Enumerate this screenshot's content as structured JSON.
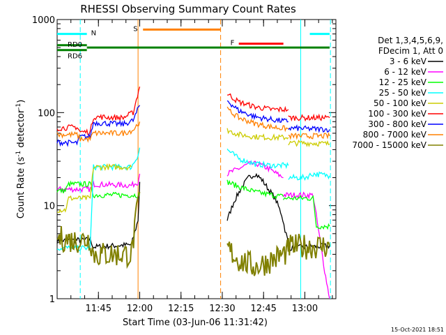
{
  "chart_data": {
    "type": "line",
    "title": "RHESSI Observing Summary Count Rates",
    "xlabel": "Start Time (03-Jun-06 11:31:42)",
    "ylabel": "Count Rate (s",
    "ylabel_sup": "-1",
    "ylabel_end": " detector",
    "ylabel_close": ")",
    "timestamp": "15-Oct-2021 18:51",
    "y_scale": "log",
    "ylim": [
      1,
      1000
    ],
    "xlim_minutes": [
      11.5,
      13.188
    ],
    "y_ticks": [
      {
        "value": 1,
        "label": "1"
      },
      {
        "value": 10,
        "label": "10"
      },
      {
        "value": 100,
        "label": "100"
      },
      {
        "value": 1000,
        "label": "1000"
      }
    ],
    "x_ticks": [
      {
        "value": 11.75,
        "label": "11:45"
      },
      {
        "value": 12.0,
        "label": "12:00"
      },
      {
        "value": 12.25,
        "label": "12:15"
      },
      {
        "value": 12.5,
        "label": "12:30"
      },
      {
        "value": 12.75,
        "label": "12:45"
      },
      {
        "value": 13.0,
        "label": "13:00"
      }
    ],
    "legend_header": [
      "Det 1,3,4,5,6,9,",
      "FDecim 1, Att 0"
    ],
    "series": [
      {
        "name": "3 - 6 keV",
        "color": "#000000",
        "segments": [
          [
            [
              11.5,
              4.2
            ],
            [
              11.7,
              4.3
            ],
            [
              11.72,
              3.6
            ],
            [
              11.95,
              3.8
            ],
            [
              11.99,
              7
            ],
            [
              12.0,
              18
            ]
          ],
          [
            [
              12.53,
              7
            ],
            [
              12.57,
              11
            ],
            [
              12.62,
              16
            ],
            [
              12.66,
              20
            ],
            [
              12.7,
              22
            ],
            [
              12.74,
              19
            ],
            [
              12.78,
              15
            ],
            [
              12.82,
              12
            ],
            [
              12.86,
              8
            ],
            [
              12.88,
              5.5
            ],
            [
              12.9,
              4
            ]
          ],
          [
            [
              12.9,
              3.5
            ],
            [
              13.15,
              3.7
            ]
          ]
        ]
      },
      {
        "name": "6 - 12 keV",
        "color": "#ff00ff",
        "segments": [
          [
            [
              11.5,
              15
            ],
            [
              11.7,
              15
            ],
            [
              11.72,
              17
            ],
            [
              11.95,
              16.5
            ],
            [
              11.99,
              18
            ],
            [
              12.0,
              22
            ]
          ],
          [
            [
              12.53,
              22
            ],
            [
              12.6,
              25
            ],
            [
              12.66,
              28
            ],
            [
              12.72,
              28
            ],
            [
              12.78,
              25
            ],
            [
              12.83,
              22
            ],
            [
              12.87,
              20
            ]
          ],
          [
            [
              12.87,
              13
            ],
            [
              13.05,
              13
            ],
            [
              13.12,
              2
            ],
            [
              13.15,
              1
            ]
          ]
        ]
      },
      {
        "name": "12 - 25 keV",
        "color": "#00ff00",
        "segments": [
          [
            [
              11.5,
              14.5
            ],
            [
              11.55,
              14.5
            ],
            [
              11.57,
              17
            ],
            [
              11.7,
              17
            ],
            [
              11.72,
              13
            ],
            [
              11.95,
              13
            ],
            [
              12.0,
              13
            ]
          ],
          [
            [
              12.53,
              18
            ],
            [
              12.6,
              16
            ],
            [
              12.7,
              14
            ],
            [
              12.8,
              13
            ],
            [
              12.87,
              12.5
            ]
          ],
          [
            [
              12.87,
              12
            ],
            [
              13.05,
              12
            ],
            [
              13.07,
              6
            ],
            [
              13.15,
              6
            ]
          ]
        ]
      },
      {
        "name": "25 - 50 keV",
        "color": "#00ffff",
        "segments": [
          [
            [
              11.5,
              3.5
            ],
            [
              11.7,
              3.5
            ],
            [
              11.72,
              26
            ],
            [
              11.95,
              26
            ],
            [
              11.99,
              35
            ],
            [
              12.0,
              42
            ]
          ],
          [
            [
              12.53,
              40
            ],
            [
              12.6,
              32
            ],
            [
              12.7,
              28
            ],
            [
              12.8,
              27
            ],
            [
              12.9,
              27
            ]
          ],
          [
            [
              12.9,
              20
            ],
            [
              13.0,
              20
            ],
            [
              13.05,
              22
            ],
            [
              13.15,
              21
            ]
          ]
        ]
      },
      {
        "name": "50 - 100 keV",
        "color": "#cccc00",
        "segments": [
          [
            [
              11.5,
              9
            ],
            [
              11.55,
              9
            ],
            [
              11.57,
              12
            ],
            [
              11.7,
              12
            ],
            [
              11.72,
              26
            ],
            [
              11.95,
              26
            ]
          ],
          [
            [
              12.53,
              65
            ],
            [
              12.6,
              58
            ],
            [
              12.7,
              55
            ],
            [
              12.8,
              54
            ],
            [
              12.9,
              54
            ]
          ],
          [
            [
              12.9,
              47
            ],
            [
              13.05,
              47
            ],
            [
              13.15,
              46
            ]
          ]
        ]
      },
      {
        "name": "100 - 300 keV",
        "color": "#ff0000",
        "segments": [
          [
            [
              11.5,
              68
            ],
            [
              11.62,
              70
            ],
            [
              11.64,
              62
            ],
            [
              11.7,
              62
            ],
            [
              11.72,
              90
            ],
            [
              11.9,
              88
            ],
            [
              11.96,
              100
            ],
            [
              12.0,
              190
            ]
          ],
          [
            [
              12.53,
              160
            ],
            [
              12.6,
              130
            ],
            [
              12.7,
              115
            ],
            [
              12.8,
              108
            ],
            [
              12.9,
              108
            ]
          ],
          [
            [
              12.9,
              88
            ],
            [
              13.15,
              88
            ]
          ]
        ]
      },
      {
        "name": "300 - 800 keV",
        "color": "#0000ff",
        "segments": [
          [
            [
              11.5,
              48
            ],
            [
              11.62,
              47
            ],
            [
              11.64,
              55
            ],
            [
              11.7,
              55
            ],
            [
              11.72,
              78
            ],
            [
              11.9,
              75
            ],
            [
              11.96,
              82
            ],
            [
              12.0,
              120
            ]
          ],
          [
            [
              12.53,
              135
            ],
            [
              12.6,
              105
            ],
            [
              12.7,
              90
            ],
            [
              12.8,
              84
            ],
            [
              12.9,
              80
            ]
          ],
          [
            [
              12.9,
              68
            ],
            [
              13.15,
              66
            ]
          ]
        ]
      },
      {
        "name": "800 - 7000 keV",
        "color": "#ff8000",
        "segments": [
          [
            [
              11.5,
              58
            ],
            [
              11.62,
              58
            ],
            [
              11.64,
              52
            ],
            [
              11.7,
              52
            ],
            [
              11.72,
              60
            ],
            [
              11.9,
              60
            ],
            [
              11.96,
              65
            ],
            [
              12.0,
              80
            ]
          ],
          [
            [
              12.53,
              108
            ],
            [
              12.6,
              88
            ],
            [
              12.7,
              76
            ],
            [
              12.8,
              70
            ],
            [
              12.9,
              67
            ]
          ],
          [
            [
              12.9,
              56
            ],
            [
              13.15,
              56
            ]
          ]
        ]
      },
      {
        "name": "7000 - 15000 keV",
        "color": "#808000",
        "segments": [
          [
            [
              11.5,
              4.5
            ],
            [
              11.6,
              4.2
            ],
            [
              11.7,
              4.4
            ],
            [
              11.72,
              3
            ],
            [
              11.95,
              3
            ],
            [
              12.0,
              14
            ]
          ],
          [
            [
              12.53,
              3.5
            ],
            [
              12.6,
              2.6
            ],
            [
              12.7,
              2.2
            ],
            [
              12.8,
              2.6
            ],
            [
              12.9,
              3.2
            ]
          ],
          [
            [
              12.9,
              3.6
            ],
            [
              13.15,
              3.7
            ]
          ]
        ]
      }
    ],
    "annotations": {
      "flags": [
        {
          "label": "N",
          "color": "#00ffff",
          "segments": [
            [
              11.5,
              11.68
            ],
            [
              13.03,
              13.15
            ]
          ],
          "y_value": 700
        },
        {
          "label": "RD0",
          "color": "#008000",
          "segments": [
            [
              11.5,
              11.68
            ]
          ],
          "y_value": 530
        },
        {
          "label": "RD6",
          "color": "#008000",
          "segments": [
            [
              11.5,
              11.68
            ]
          ],
          "y_value": 470
        },
        {
          "label": "",
          "color": "#008000",
          "segments": [
            [
              11.68,
              13.15
            ]
          ],
          "y_value": 500
        },
        {
          "label": "S",
          "color": "#ff8000",
          "segments": [
            [
              12.02,
              12.49
            ]
          ],
          "y_value": 780
        },
        {
          "label": "F",
          "color": "#ff0000",
          "segments": [
            [
              12.6,
              12.87
            ]
          ],
          "y_value": 550
        }
      ],
      "vlines": [
        {
          "x": 11.64,
          "color": "#00ffff",
          "style": "dashed"
        },
        {
          "x": 11.99,
          "color": "#ff8000",
          "style": "solid"
        },
        {
          "x": 12.49,
          "color": "#ff8000",
          "style": "dashed"
        },
        {
          "x": 12.975,
          "color": "#00ffff",
          "style": "solid"
        },
        {
          "x": 13.155,
          "color": "#00ffff",
          "style": "dashed"
        }
      ]
    }
  }
}
